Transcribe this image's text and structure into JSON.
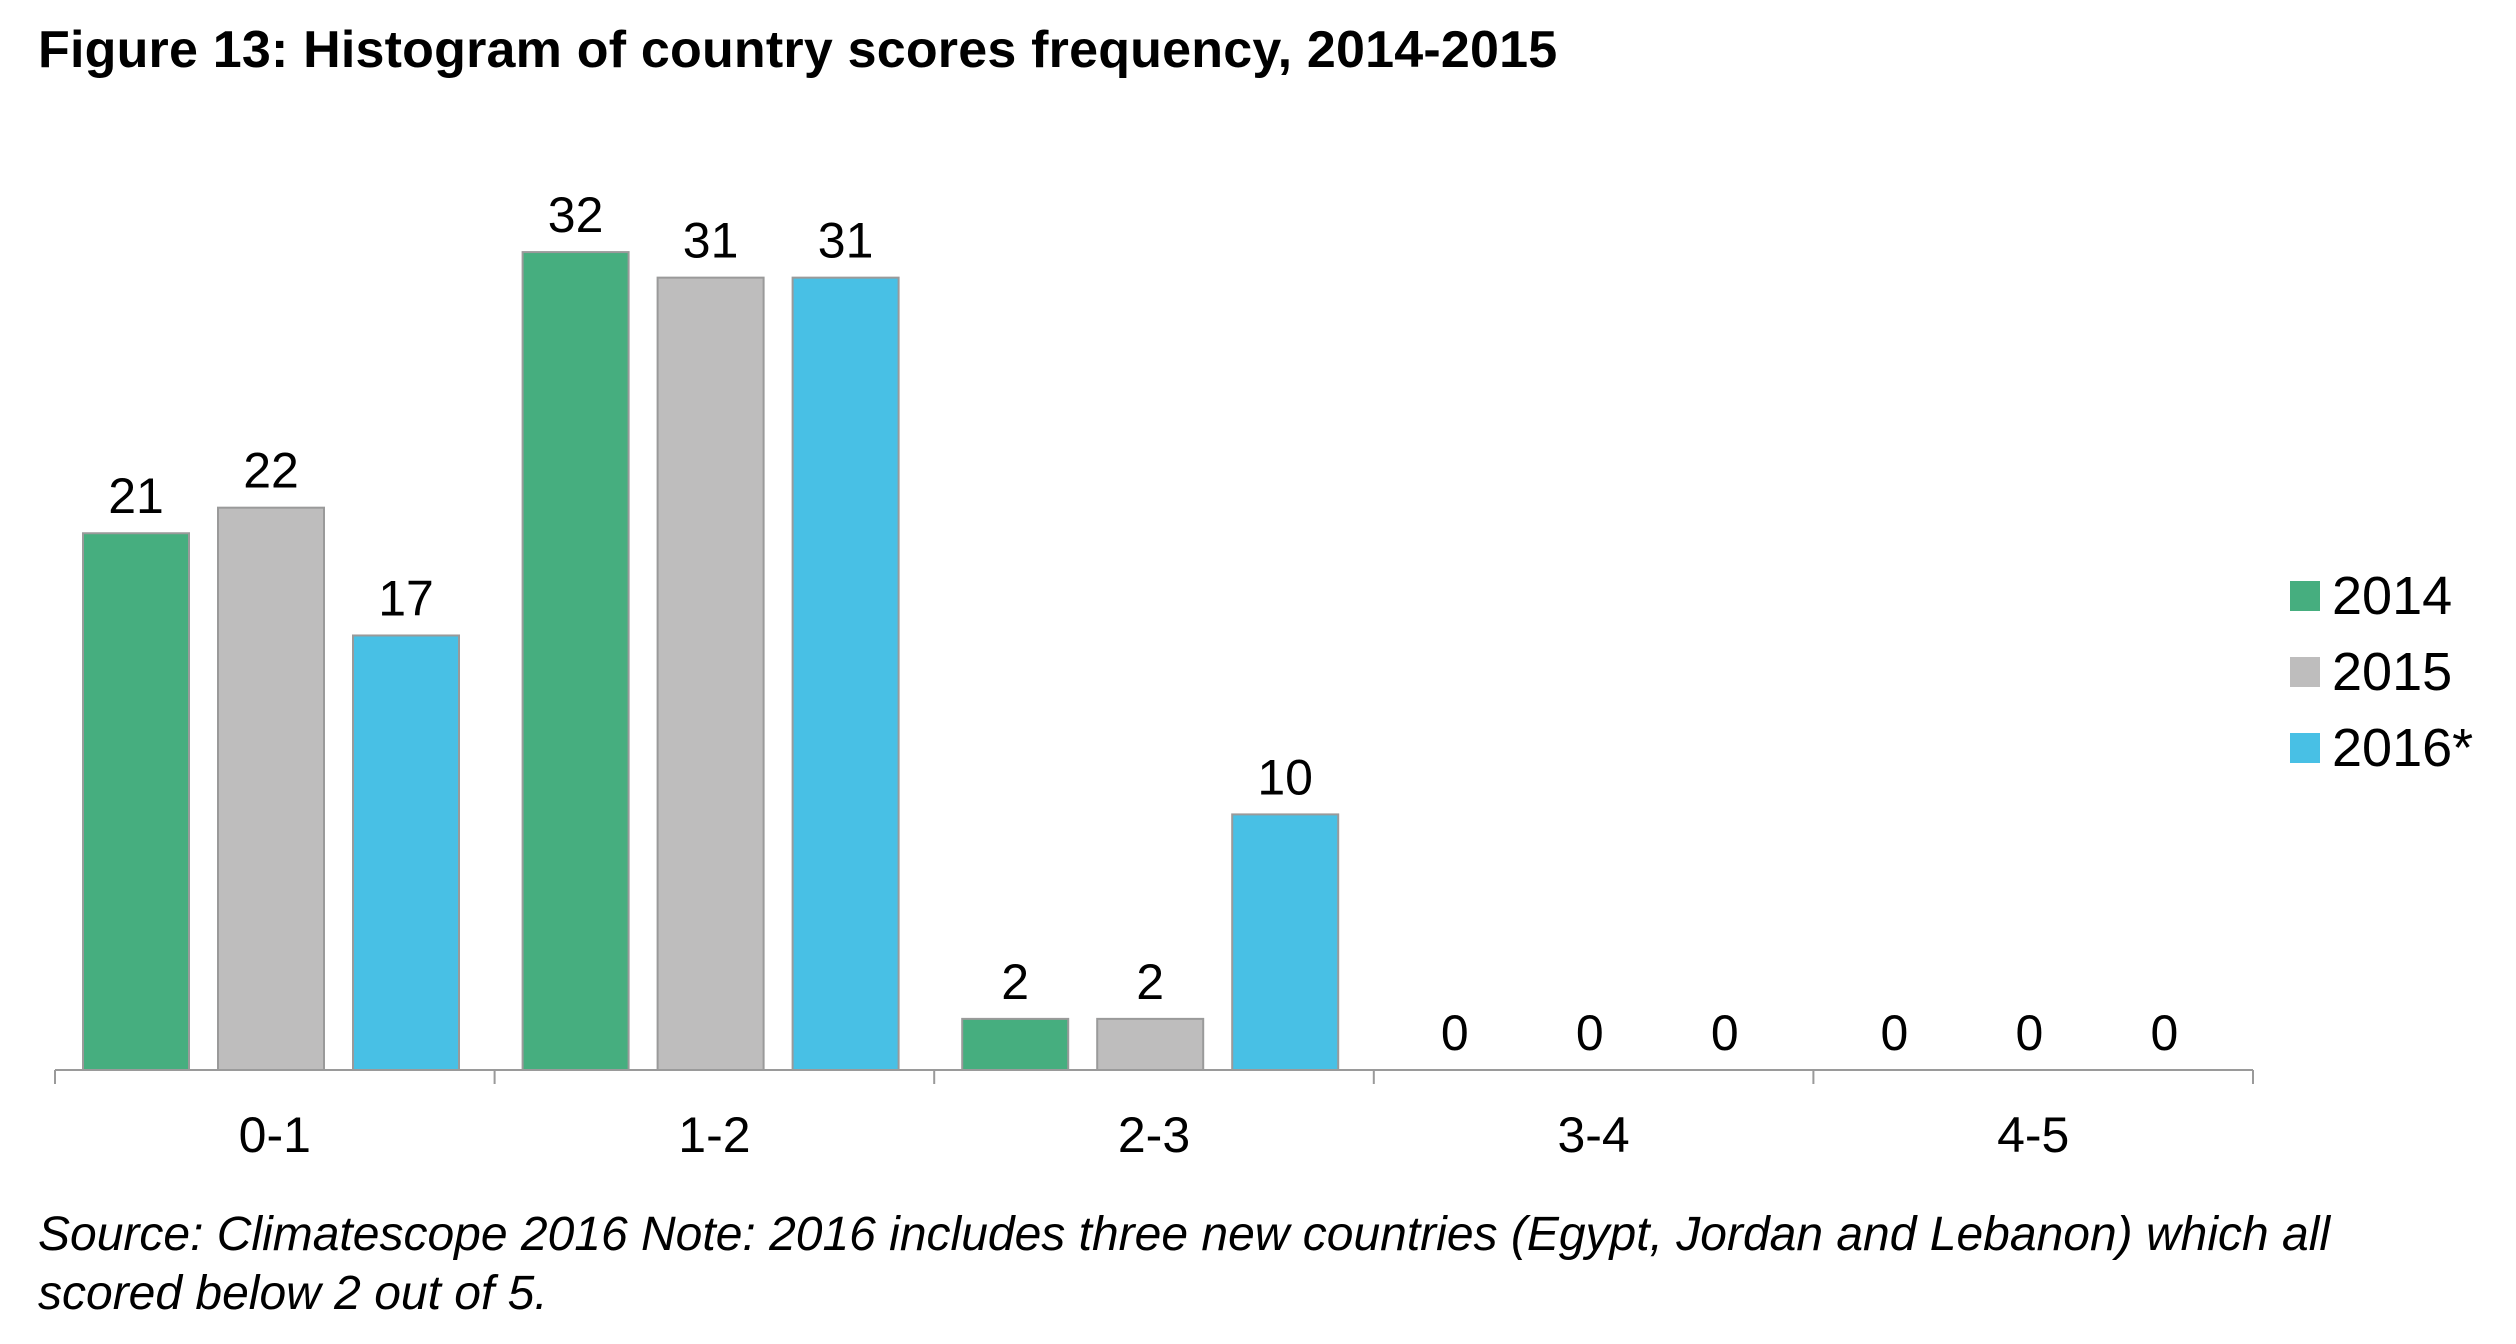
{
  "title": "Figure 13: Histogram of country scores frequency, 2014-2015",
  "source_note": "Source: Climatescope 2016 Note: 2016 includes three new countries (Egypt, Jordan and Lebanon) which all scored below 2 out of 5.",
  "chart_data": {
    "type": "bar",
    "title": "Figure 13: Histogram of country scores frequency, 2014-2015",
    "xlabel": "",
    "ylabel": "",
    "categories": [
      "0-1",
      "1-2",
      "2-3",
      "3-4",
      "4-5"
    ],
    "series": [
      {
        "name": "2014",
        "values": [
          21,
          32,
          2,
          0,
          0
        ],
        "color": "#46AE7F"
      },
      {
        "name": "2015",
        "values": [
          22,
          31,
          2,
          0,
          0
        ],
        "color": "#BEBDBD"
      },
      {
        "name": "2016*",
        "values": [
          17,
          31,
          10,
          0,
          0
        ],
        "color": "#48C0E5"
      }
    ],
    "ylim": [
      0,
      32
    ],
    "data_labels": true,
    "grid": false,
    "legend_position": "right"
  }
}
